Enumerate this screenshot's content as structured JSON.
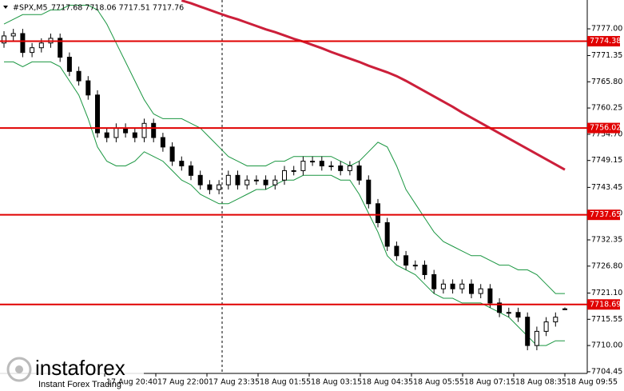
{
  "chart_data": {
    "type": "candlestick",
    "symbol": "#SPX,M5",
    "ohlc_header": "7717.68 7718.06 7717.51 7717.76",
    "x_labels": [
      "17 Aug 20:40",
      "17 Aug 22:00",
      "17 Aug 23:35",
      "18 Aug 01:55",
      "18 Aug 03:15",
      "18 Aug 04:35",
      "18 Aug 05:55",
      "18 Aug 07:15",
      "18 Aug 08:35",
      "18 Aug 09:55"
    ],
    "open": [
      7774,
      7775.5,
      7776,
      7772,
      7773,
      7774,
      7775,
      7771,
      7768,
      7766,
      7763,
      7755,
      7754,
      7756,
      7755,
      7754,
      7757,
      7754,
      7752,
      7749,
      7748,
      7746,
      7744,
      7743,
      7744,
      7746,
      7744,
      7745,
      7745,
      7744,
      7745,
      7747,
      7747,
      7749,
      7749,
      7748,
      7748,
      7747,
      7748,
      7745,
      7740,
      7736,
      7731,
      7729,
      7727,
      7727,
      7725,
      7722,
      7723,
      7722,
      7723,
      7721,
      7722,
      7719,
      7717,
      7717,
      7716,
      7710,
      7713,
      7715,
      7717.68
    ],
    "high": [
      7776.5,
      7777,
      7777,
      7774,
      7775,
      7776,
      7776,
      7772,
      7769,
      7767,
      7764,
      7756,
      7757,
      7757,
      7756,
      7758,
      7758,
      7755,
      7753,
      7750,
      7749,
      7747,
      7745,
      7745,
      7747,
      7747,
      7746,
      7746,
      7746,
      7746,
      7748,
      7748,
      7750,
      7750,
      7750,
      7749,
      7749,
      7749,
      7749,
      7746,
      7741,
      7737,
      7732,
      7730,
      7728,
      7728,
      7726,
      7724,
      7724,
      7724,
      7724,
      7723,
      7723,
      7720,
      7718,
      7718,
      7717,
      7714,
      7716,
      7717,
      7718.06
    ],
    "low": [
      7773,
      7774.5,
      7771,
      7771,
      7772,
      7773,
      7770,
      7767,
      7765,
      7762,
      7754,
      7753,
      7753,
      7754,
      7753,
      7753,
      7753,
      7751,
      7748,
      7747,
      7745,
      7743,
      7742,
      7742,
      7743,
      7743,
      7743,
      7744,
      7743,
      7743,
      7744,
      7746,
      7746,
      7748,
      7747,
      7747,
      7746,
      7746,
      7744,
      7739,
      7735,
      7730,
      7728,
      7726,
      7726,
      7724,
      7721,
      7721,
      7721,
      7721,
      7720,
      7720,
      7718,
      7716,
      7716,
      7715,
      7709,
      7709,
      7712,
      7714,
      7717.51
    ],
    "close": [
      7775.5,
      7776,
      7772,
      7773,
      7774,
      7775,
      7771,
      7768,
      7766,
      7763,
      7755,
      7754,
      7756,
      7755,
      7754,
      7757,
      7754,
      7752,
      7749,
      7748,
      7746,
      7744,
      7743,
      7744,
      7746,
      7744,
      7745,
      7745,
      7744,
      7745,
      7747,
      7747,
      7749,
      7749,
      7748,
      7748,
      7747,
      7748,
      7745,
      7740,
      7736,
      7731,
      7729,
      7727,
      7727,
      7725,
      7722,
      7723,
      7722,
      7723,
      7721,
      7722,
      7719,
      7717,
      7717,
      7716,
      7710,
      7713,
      7715,
      7716,
      7717.76
    ],
    "series": [
      {
        "kind": "band",
        "color": "#1a9641",
        "values": [
          7778,
          7779,
          7780,
          7780,
          7780,
          7781,
          7781,
          7782,
          7782,
          7782,
          7781,
          7778,
          7774,
          7770,
          7766,
          7762,
          7759,
          7758,
          7758,
          7758,
          7757,
          7756,
          7754,
          7752,
          7750,
          7749,
          7748,
          7748,
          7748,
          7749,
          7749,
          7750,
          7750,
          7750,
          7750,
          7750,
          7749,
          7748,
          7749,
          7751,
          7753,
          7752,
          7748,
          7743,
          7740,
          7737,
          7734,
          7732,
          7731,
          7730,
          7729,
          7729,
          7728,
          7727,
          7727,
          7726,
          7726,
          7725,
          7723,
          7721,
          7721
        ]
      },
      {
        "kind": "band",
        "color": "#1a9641",
        "values": [
          7770,
          7770,
          7769,
          7770,
          7770,
          7770,
          7769,
          7766,
          7763,
          7758,
          7752,
          7749,
          7748,
          7748,
          7749,
          7751,
          7750,
          7749,
          7747,
          7745,
          7744,
          7742,
          7741,
          7740,
          7740,
          7741,
          7742,
          7743,
          7743,
          7744,
          7745,
          7745,
          7746,
          7746,
          7746,
          7746,
          7745,
          7745,
          7742,
          7738,
          7734,
          7729,
          7727,
          7726,
          7725,
          7723,
          7721,
          7720,
          7720,
          7719,
          7719,
          7719,
          7718,
          7717,
          7716,
          7714,
          7712,
          7710,
          7710,
          7711,
          7711
        ]
      },
      {
        "kind": "ma",
        "color": "#cc1f3a",
        "values": [
          null,
          null,
          null,
          null,
          null,
          null,
          null,
          null,
          null,
          null,
          null,
          null,
          null,
          null,
          null,
          null,
          null,
          null,
          null,
          7783.0,
          7782.4,
          7781.7,
          7781.0,
          7780.3,
          7779.6,
          7779.0,
          7778.3,
          7777.6,
          7776.9,
          7776.3,
          7775.6,
          7774.9,
          7774.3,
          7773.6,
          7772.9,
          7772.1,
          7771.4,
          7770.7,
          7770.0,
          7769.2,
          7768.5,
          7767.8,
          7767.0,
          7766.0,
          7764.9,
          7763.8,
          7762.7,
          7761.6,
          7760.5,
          7759.3,
          7758.2,
          7757.1,
          7756.0,
          7754.9,
          7753.8,
          7752.7,
          7751.6,
          7750.5,
          7749.4,
          7748.3,
          7747.2
        ]
      }
    ],
    "levels": [
      7774.38,
      7756.02,
      7737.65,
      7718.69
    ],
    "level_color": "#e00000",
    "ylim": [
      7704.1,
      7783.1
    ],
    "yticks": [
      {
        "value": 7777,
        "label": "7777.00"
      },
      7771.35,
      {
        "value": 7765.8,
        "label": "7765.80"
      },
      7760.25,
      {
        "value": 7754.7,
        "label": "7754.70"
      },
      7749.15,
      7743.45,
      {
        "value": 7737.9,
        "label": "7737.90"
      },
      7732.35,
      {
        "value": 7726.8,
        "label": "7726.80"
      },
      {
        "value": 7721.1,
        "label": "7721.10"
      },
      7715.55,
      {
        "value": 7710,
        "label": "7710.00"
      },
      7704.45
    ]
  },
  "watermark": {
    "brand": "instaforex",
    "tagline": "Instant Forex Trading"
  }
}
